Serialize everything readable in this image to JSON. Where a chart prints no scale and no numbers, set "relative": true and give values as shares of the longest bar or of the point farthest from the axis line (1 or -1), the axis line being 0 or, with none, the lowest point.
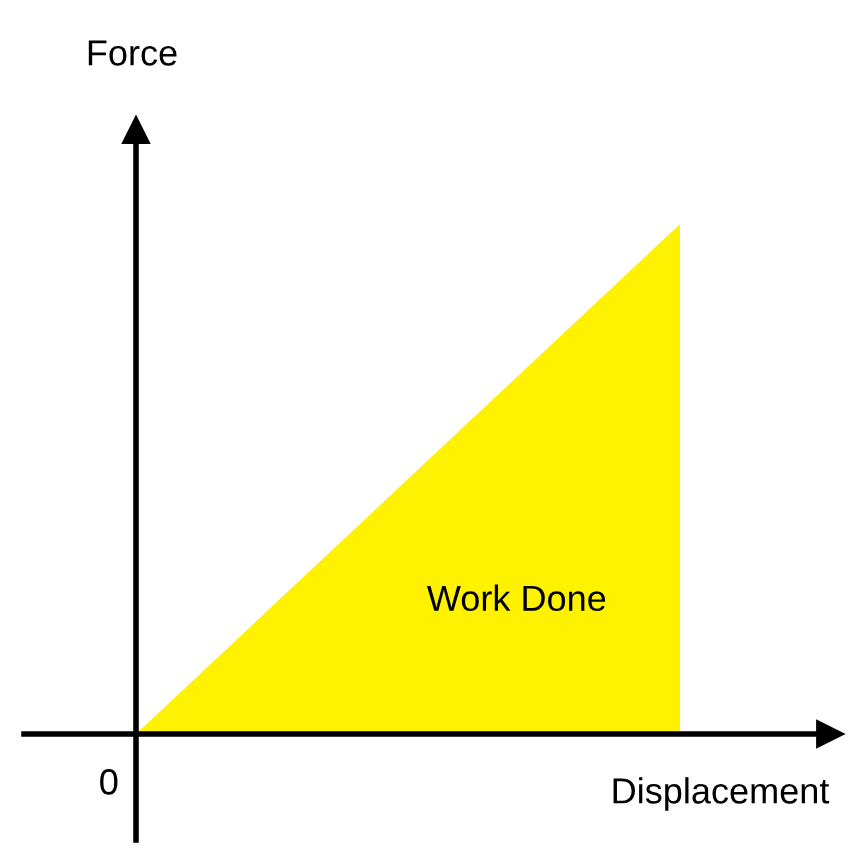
{
  "chart_data": {
    "type": "area",
    "relative": true,
    "categories": [
      null,
      null
    ],
    "series": [
      {
        "color": "#fff200",
        "values": [
          0,
          1
        ]
      }
    ],
    "xlabel": "Displacement",
    "ylabel": "Force",
    "annotations": [
      "Work Done",
      "0"
    ],
    "tick_labels": false
  }
}
